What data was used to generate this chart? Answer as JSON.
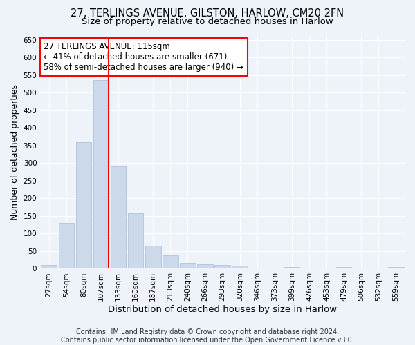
{
  "title_line1": "27, TERLINGS AVENUE, GILSTON, HARLOW, CM20 2FN",
  "title_line2": "Size of property relative to detached houses in Harlow",
  "xlabel": "Distribution of detached houses by size in Harlow",
  "ylabel": "Number of detached properties",
  "footer_line1": "Contains HM Land Registry data © Crown copyright and database right 2024.",
  "footer_line2": "Contains public sector information licensed under the Open Government Licence v3.0.",
  "bar_labels": [
    "27sqm",
    "54sqm",
    "80sqm",
    "107sqm",
    "133sqm",
    "160sqm",
    "187sqm",
    "213sqm",
    "240sqm",
    "266sqm",
    "293sqm",
    "320sqm",
    "346sqm",
    "373sqm",
    "399sqm",
    "426sqm",
    "453sqm",
    "479sqm",
    "506sqm",
    "532sqm",
    "559sqm"
  ],
  "bar_values": [
    10,
    130,
    360,
    535,
    290,
    157,
    65,
    38,
    17,
    13,
    10,
    8,
    0,
    0,
    4,
    0,
    0,
    4,
    0,
    0,
    4
  ],
  "bar_color": "#ccd9eb",
  "bar_edgecolor": "#a8bdd4",
  "highlight_bar_index": 3,
  "annotation_text": "27 TERLINGS AVENUE: 115sqm\n← 41% of detached houses are smaller (671)\n58% of semi-detached houses are larger (940) →",
  "annotation_box_color": "white",
  "annotation_box_edgecolor": "red",
  "vertical_line_color": "red",
  "ylim": [
    0,
    660
  ],
  "yticks": [
    0,
    50,
    100,
    150,
    200,
    250,
    300,
    350,
    400,
    450,
    500,
    550,
    600,
    650
  ],
  "background_color": "#eef2f9",
  "plot_background_color": "#eef2f9",
  "grid_color": "white",
  "title_fontsize": 10.5,
  "subtitle_fontsize": 9.5,
  "axis_label_fontsize": 9,
  "tick_fontsize": 7.5,
  "annotation_fontsize": 8.5,
  "footer_fontsize": 7
}
